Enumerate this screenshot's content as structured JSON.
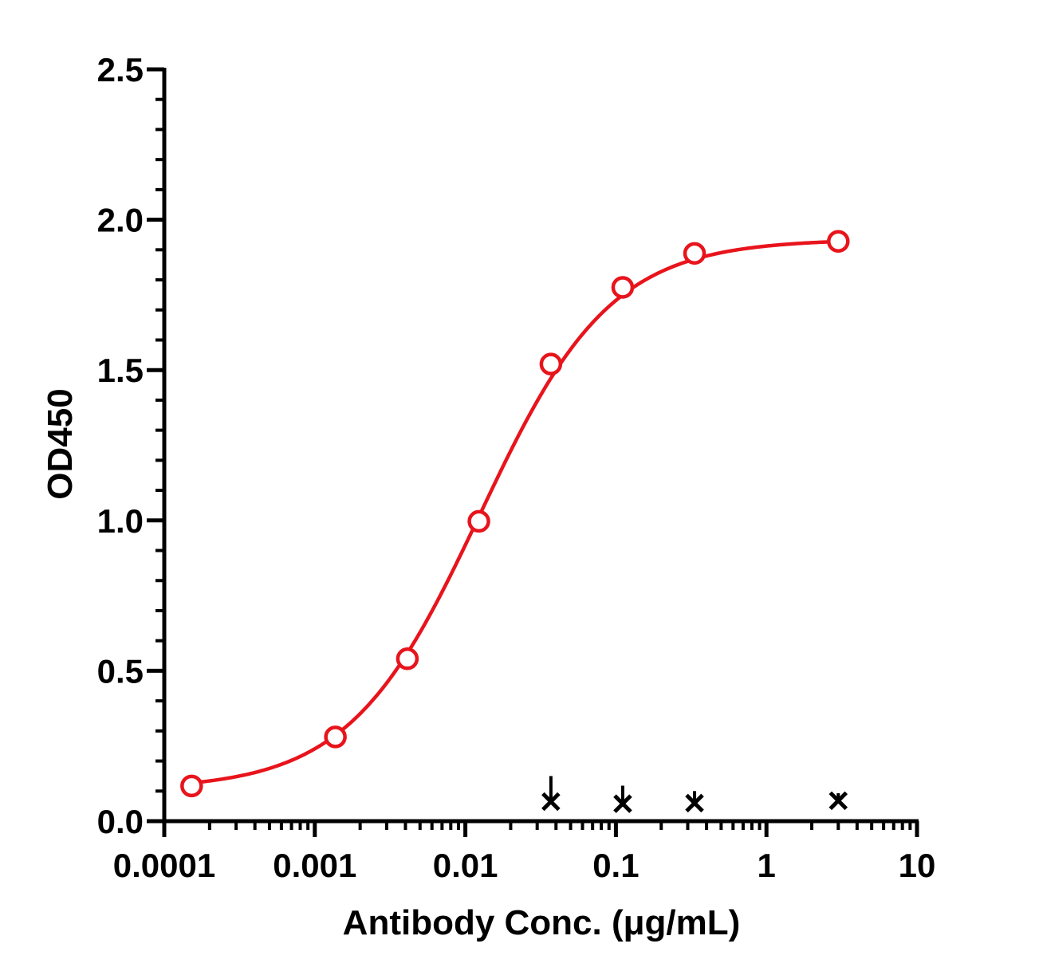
{
  "chart_data": {
    "type": "scatter",
    "xlabel": "Antibody Conc. (μg/mL)",
    "ylabel": "OD450",
    "x_scale": "log",
    "xlim": [
      0.0001,
      10
    ],
    "ylim": [
      0,
      2.5
    ],
    "x_ticks": [
      {
        "value": 0.0001,
        "label": "0.0001"
      },
      {
        "value": 0.001,
        "label": "0.001"
      },
      {
        "value": 0.01,
        "label": "0.01"
      },
      {
        "value": 0.1,
        "label": "0.1"
      },
      {
        "value": 1,
        "label": "1"
      },
      {
        "value": 10,
        "label": "10"
      }
    ],
    "y_ticks": [
      {
        "value": 0,
        "label": "0.0"
      },
      {
        "value": 0.5,
        "label": "0.5"
      },
      {
        "value": 1.0,
        "label": "1.0"
      },
      {
        "value": 1.5,
        "label": "1.5"
      },
      {
        "value": 2.0,
        "label": "2.0"
      },
      {
        "value": 2.5,
        "label": "2.5"
      }
    ],
    "grid": false,
    "legend": "none",
    "series": [
      {
        "marker": "open-circle",
        "color": "#e8141c",
        "fit": "four-parameter-logistic",
        "x": [
          0.000152,
          0.00137,
          0.00412,
          0.0123,
          0.037,
          0.111,
          0.333,
          3.0
        ],
        "y": [
          0.117,
          0.28,
          0.54,
          0.997,
          1.52,
          1.775,
          1.888,
          1.928
        ]
      },
      {
        "marker": "x-with-errorbar",
        "color": "#000000",
        "x": [
          0.037,
          0.111,
          0.333,
          3.0
        ],
        "y": [
          0.065,
          0.058,
          0.06,
          0.068
        ],
        "err": [
          0.085,
          0.06,
          0.04,
          0.025
        ]
      }
    ]
  }
}
